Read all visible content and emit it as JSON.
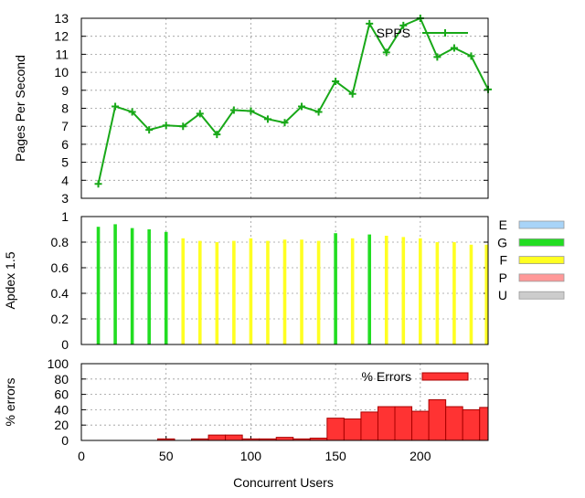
{
  "chart_data": [
    {
      "type": "line",
      "ylabel": "Pages Per Second",
      "xlim": [
        0,
        240
      ],
      "ylim": [
        3,
        13
      ],
      "yticks": [
        3,
        4,
        5,
        6,
        7,
        8,
        9,
        10,
        11,
        12,
        13
      ],
      "grid": true,
      "legend": "top-right",
      "series": [
        {
          "name": "SPPS",
          "color": "#18a818",
          "x": [
            10,
            20,
            30,
            40,
            50,
            60,
            70,
            80,
            90,
            100,
            110,
            120,
            130,
            140,
            150,
            160,
            170,
            180,
            190,
            200,
            210,
            220,
            230,
            240
          ],
          "values": [
            3.8,
            8.1,
            7.8,
            6.8,
            7.05,
            7.0,
            7.7,
            6.55,
            7.9,
            7.85,
            7.4,
            7.2,
            8.1,
            7.8,
            9.5,
            8.8,
            12.7,
            11.1,
            12.6,
            13.0,
            10.85,
            11.35,
            10.9,
            9.05
          ]
        }
      ]
    },
    {
      "type": "bar",
      "ylabel": "Apdex 1.5",
      "xlim": [
        0,
        240
      ],
      "ylim": [
        0,
        1
      ],
      "yticks": [
        "0",
        "0.2",
        "0.4",
        "0.6",
        "0.8",
        "1"
      ],
      "grid": true,
      "legend": "right",
      "legend_items": [
        {
          "label": "E",
          "color": "#a8d4f8"
        },
        {
          "label": "G",
          "color": "#22dd22"
        },
        {
          "label": "F",
          "color": "#ffff22"
        },
        {
          "label": "P",
          "color": "#ff9999"
        },
        {
          "label": "U",
          "color": "#cccccc"
        }
      ],
      "x": [
        10,
        20,
        30,
        40,
        50,
        60,
        70,
        80,
        90,
        100,
        110,
        120,
        130,
        140,
        150,
        160,
        170,
        180,
        190,
        200,
        210,
        220,
        230,
        240
      ],
      "values": [
        0.92,
        0.94,
        0.91,
        0.9,
        0.88,
        0.83,
        0.81,
        0.8,
        0.81,
        0.83,
        0.81,
        0.82,
        0.82,
        0.81,
        0.87,
        0.83,
        0.86,
        0.85,
        0.84,
        0.83,
        0.8,
        0.8,
        0.78,
        0.78
      ],
      "ratings": [
        "G",
        "G",
        "G",
        "G",
        "G",
        "F",
        "F",
        "F",
        "F",
        "F",
        "F",
        "F",
        "F",
        "F",
        "G",
        "F",
        "G",
        "F",
        "F",
        "F",
        "F",
        "F",
        "F",
        "F"
      ]
    },
    {
      "type": "bar",
      "ylabel": "% errors",
      "xlabel": "Concurrent Users",
      "xlim": [
        0,
        240
      ],
      "xticks": [
        0,
        50,
        100,
        150,
        200
      ],
      "ylim": [
        0,
        100
      ],
      "yticks": [
        0,
        20,
        40,
        60,
        80,
        100
      ],
      "grid": true,
      "legend": "top-right",
      "series": [
        {
          "name": "% Errors",
          "color": "#ff3333",
          "x": [
            10,
            20,
            30,
            40,
            50,
            60,
            70,
            80,
            90,
            100,
            110,
            120,
            130,
            140,
            150,
            160,
            170,
            180,
            190,
            200,
            210,
            220,
            230,
            240
          ],
          "values": [
            0,
            0,
            0,
            0,
            2,
            0,
            2,
            7,
            7,
            2,
            2,
            4,
            2,
            3,
            29,
            28,
            37,
            44,
            44,
            38,
            53,
            44,
            40,
            43
          ]
        }
      ]
    }
  ]
}
